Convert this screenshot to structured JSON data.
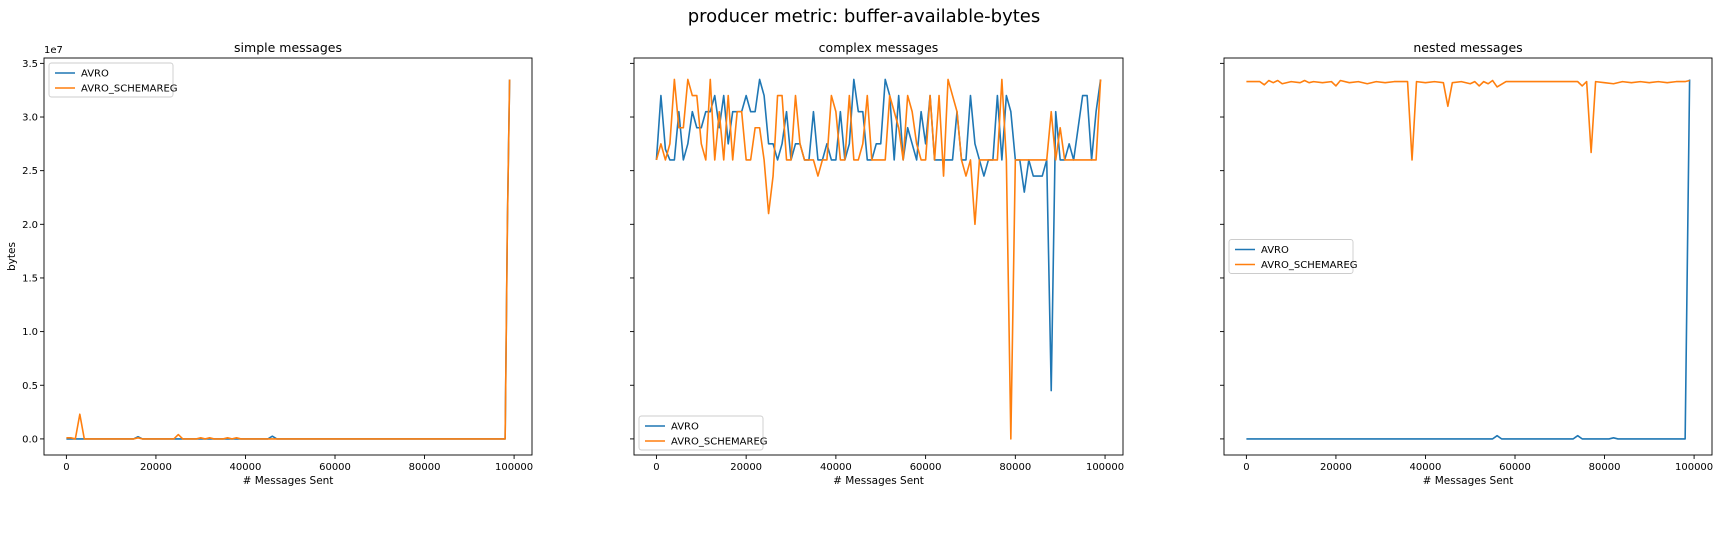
{
  "figure": {
    "suptitle": "producer metric: buffer-available-bytes"
  },
  "colors": {
    "AVRO": "#1f77b4",
    "AVRO_SCHEMAREG": "#ff7f0e"
  },
  "chart_data": [
    {
      "type": "line",
      "title": "simple messages",
      "xlabel": "# Messages Sent",
      "ylabel": "bytes",
      "y_offset_label": "1e7",
      "xlim": [
        -5000,
        104000
      ],
      "ylim": [
        -1500000,
        35500000
      ],
      "xticks": [
        0,
        20000,
        40000,
        60000,
        80000,
        100000
      ],
      "xtick_labels": [
        "0",
        "20000",
        "40000",
        "60000",
        "80000",
        "100000"
      ],
      "yticks": [
        0,
        5000000,
        10000000,
        15000000,
        20000000,
        25000000,
        30000000,
        35000000
      ],
      "ytick_labels": [
        "0.0",
        "0.5",
        "1.0",
        "1.5",
        "2.0",
        "2.5",
        "3.0",
        "3.5"
      ],
      "legend": {
        "placement": "upper-left"
      },
      "series": [
        {
          "name": "AVRO",
          "x": [
            0,
            1000,
            2000,
            3000,
            4000,
            15000,
            16000,
            17000,
            18000,
            45000,
            46000,
            47000,
            98000,
            98500,
            99000
          ],
          "y": [
            0,
            0,
            0,
            0,
            0,
            0,
            200000,
            0,
            0,
            0,
            250000,
            0,
            0,
            20000000,
            33500000
          ]
        },
        {
          "name": "AVRO_SCHEMAREG",
          "x": [
            0,
            1000,
            2000,
            3000,
            4000,
            15000,
            16000,
            17000,
            18000,
            24000,
            25000,
            26000,
            29000,
            30000,
            31000,
            32000,
            33000,
            35000,
            36000,
            37000,
            38000,
            39000,
            40000,
            98000,
            98500,
            99000
          ],
          "y": [
            100000,
            100000,
            0,
            2300000,
            0,
            0,
            100000,
            0,
            0,
            0,
            400000,
            0,
            0,
            100000,
            0,
            100000,
            0,
            0,
            100000,
            0,
            100000,
            0,
            0,
            0,
            20000000,
            33500000
          ]
        }
      ]
    },
    {
      "type": "line",
      "title": "complex messages",
      "xlabel": "# Messages Sent",
      "ylabel": "",
      "y_offset_label": "",
      "xlim": [
        -5000,
        104000
      ],
      "ylim": [
        -1500000,
        35500000
      ],
      "xticks": [
        0,
        20000,
        40000,
        60000,
        80000,
        100000
      ],
      "xtick_labels": [
        "0",
        "20000",
        "40000",
        "60000",
        "80000",
        "100000"
      ],
      "yticks": [
        0,
        5000000,
        10000000,
        15000000,
        20000000,
        25000000,
        30000000,
        35000000
      ],
      "ytick_labels": [
        "",
        "",
        "",
        "",
        "",
        "",
        "",
        ""
      ],
      "legend": {
        "placement": "lower-left"
      },
      "series": [
        {
          "name": "AVRO",
          "x": [
            0,
            1000,
            2000,
            3000,
            4000,
            5000,
            6000,
            7000,
            8000,
            9000,
            10000,
            11000,
            12000,
            13000,
            14000,
            15000,
            16000,
            17000,
            18000,
            19000,
            20000,
            21000,
            22000,
            23000,
            24000,
            25000,
            26000,
            27000,
            28000,
            29000,
            30000,
            31000,
            32000,
            33000,
            34000,
            35000,
            36000,
            37000,
            38000,
            39000,
            40000,
            41000,
            42000,
            43000,
            44000,
            45000,
            46000,
            47000,
            48000,
            49000,
            50000,
            51000,
            52000,
            53000,
            54000,
            55000,
            56000,
            57000,
            58000,
            59000,
            60000,
            61000,
            62000,
            63000,
            64000,
            65000,
            66000,
            67000,
            68000,
            69000,
            70000,
            71000,
            72000,
            73000,
            74000,
            75000,
            76000,
            77000,
            78000,
            79000,
            80000,
            81000,
            82000,
            83000,
            84000,
            85000,
            86000,
            87000,
            88000,
            89000,
            90000,
            91000,
            92000,
            93000,
            94000,
            95000,
            96000,
            97000,
            98000,
            99000
          ],
          "y": [
            26000000,
            32000000,
            27000000,
            26000000,
            26000000,
            30500000,
            26000000,
            27500000,
            30500000,
            29000000,
            29000000,
            30500000,
            30500000,
            32000000,
            29000000,
            32000000,
            27500000,
            30500000,
            30500000,
            30500000,
            32000000,
            30500000,
            30500000,
            33500000,
            32000000,
            27500000,
            27500000,
            26000000,
            27500000,
            30500000,
            26000000,
            27500000,
            27500000,
            26000000,
            26000000,
            30500000,
            26000000,
            26000000,
            27500000,
            26000000,
            26000000,
            30500000,
            26000000,
            27500000,
            33500000,
            30500000,
            30500000,
            26000000,
            26000000,
            27500000,
            27500000,
            33500000,
            32000000,
            26000000,
            32000000,
            26000000,
            29000000,
            27500000,
            26000000,
            30500000,
            27500000,
            32000000,
            26000000,
            26000000,
            26000000,
            26000000,
            26000000,
            30500000,
            26000000,
            26000000,
            32000000,
            27500000,
            26000000,
            24500000,
            26000000,
            26000000,
            32000000,
            26000000,
            32000000,
            30500000,
            26000000,
            26000000,
            23000000,
            26000000,
            24500000,
            24500000,
            24500000,
            26000000,
            4500000,
            30500000,
            26000000,
            26000000,
            27500000,
            26000000,
            29000000,
            32000000,
            32000000,
            26000000,
            30500000,
            33500000
          ]
        },
        {
          "name": "AVRO_SCHEMAREG",
          "x": [
            0,
            1000,
            2000,
            3000,
            4000,
            5000,
            6000,
            7000,
            8000,
            9000,
            10000,
            11000,
            12000,
            13000,
            14000,
            15000,
            16000,
            17000,
            18000,
            19000,
            20000,
            21000,
            22000,
            23000,
            24000,
            25000,
            26000,
            27000,
            28000,
            29000,
            30000,
            31000,
            32000,
            33000,
            34000,
            35000,
            36000,
            37000,
            38000,
            39000,
            40000,
            41000,
            42000,
            43000,
            44000,
            45000,
            46000,
            47000,
            48000,
            49000,
            50000,
            51000,
            52000,
            53000,
            54000,
            55000,
            56000,
            57000,
            58000,
            59000,
            60000,
            61000,
            62000,
            63000,
            64000,
            65000,
            66000,
            67000,
            68000,
            69000,
            70000,
            71000,
            72000,
            73000,
            74000,
            75000,
            76000,
            77000,
            78000,
            79000,
            80000,
            81000,
            82000,
            83000,
            84000,
            85000,
            86000,
            87000,
            88000,
            89000,
            90000,
            91000,
            92000,
            93000,
            94000,
            95000,
            96000,
            97000,
            98000,
            99000
          ],
          "y": [
            26000000,
            27500000,
            26000000,
            27500000,
            33500000,
            29000000,
            29000000,
            33500000,
            32000000,
            32000000,
            27500000,
            26000000,
            33500000,
            26000000,
            30500000,
            26000000,
            32000000,
            26000000,
            30500000,
            30500000,
            26000000,
            26000000,
            29000000,
            29000000,
            26000000,
            21000000,
            24500000,
            32000000,
            32000000,
            26000000,
            26000000,
            32000000,
            27500000,
            26000000,
            26000000,
            26000000,
            24500000,
            26000000,
            26000000,
            32000000,
            30500000,
            26000000,
            26000000,
            32000000,
            26000000,
            26000000,
            27500000,
            32000000,
            26000000,
            26000000,
            26000000,
            26000000,
            32000000,
            30500000,
            29000000,
            26000000,
            32000000,
            30500000,
            27500000,
            26000000,
            26000000,
            32000000,
            26000000,
            32000000,
            24500000,
            33500000,
            32000000,
            30500000,
            26000000,
            24500000,
            26000000,
            20000000,
            26000000,
            26000000,
            26000000,
            26000000,
            26000000,
            33500000,
            26000000,
            0,
            26000000,
            26000000,
            26000000,
            26000000,
            26000000,
            26000000,
            26000000,
            26000000,
            30500000,
            26000000,
            29000000,
            26000000,
            26000000,
            26000000,
            26000000,
            26000000,
            26000000,
            26000000,
            26000000,
            33500000
          ]
        }
      ]
    },
    {
      "type": "line",
      "title": "nested messages",
      "xlabel": "# Messages Sent",
      "ylabel": "",
      "y_offset_label": "",
      "xlim": [
        -5000,
        104000
      ],
      "ylim": [
        -1500000,
        35500000
      ],
      "xticks": [
        0,
        20000,
        40000,
        60000,
        80000,
        100000
      ],
      "xtick_labels": [
        "0",
        "20000",
        "40000",
        "60000",
        "80000",
        "100000"
      ],
      "yticks": [
        0,
        5000000,
        10000000,
        15000000,
        20000000,
        25000000,
        30000000,
        35000000
      ],
      "ytick_labels": [
        "",
        "",
        "",
        "",
        "",
        "",
        "",
        ""
      ],
      "legend": {
        "placement": "center-left"
      },
      "series": [
        {
          "name": "AVRO",
          "x": [
            0,
            55000,
            56000,
            57000,
            73000,
            74000,
            75000,
            81000,
            82000,
            83000,
            98000,
            99000
          ],
          "y": [
            0,
            0,
            300000,
            0,
            0,
            300000,
            0,
            0,
            100000,
            0,
            0,
            33500000
          ]
        },
        {
          "name": "AVRO_SCHEMAREG",
          "x": [
            0,
            2000,
            3000,
            4000,
            5000,
            6000,
            7000,
            8000,
            10000,
            12000,
            13000,
            14000,
            15000,
            17000,
            19000,
            20000,
            21000,
            23000,
            25000,
            27000,
            29000,
            31000,
            33000,
            35000,
            36000,
            37000,
            38000,
            40000,
            42000,
            44000,
            45000,
            46000,
            48000,
            50000,
            51000,
            52000,
            53000,
            54000,
            55000,
            56000,
            58000,
            60000,
            62000,
            64000,
            66000,
            68000,
            70000,
            72000,
            74000,
            75000,
            76000,
            77000,
            78000,
            80000,
            82000,
            84000,
            86000,
            88000,
            90000,
            92000,
            94000,
            96000,
            98000,
            99000
          ],
          "y": [
            33300000,
            33300000,
            33300000,
            33000000,
            33400000,
            33200000,
            33400000,
            33100000,
            33300000,
            33200000,
            33400000,
            33200000,
            33300000,
            33200000,
            33300000,
            32900000,
            33400000,
            33200000,
            33300000,
            33100000,
            33300000,
            33200000,
            33300000,
            33300000,
            33300000,
            26000000,
            33300000,
            33200000,
            33300000,
            33200000,
            31000000,
            33200000,
            33300000,
            33100000,
            33300000,
            32900000,
            33300000,
            33100000,
            33400000,
            32800000,
            33300000,
            33300000,
            33300000,
            33300000,
            33300000,
            33300000,
            33300000,
            33300000,
            33300000,
            32900000,
            33300000,
            26700000,
            33300000,
            33200000,
            33100000,
            33300000,
            33200000,
            33300000,
            33200000,
            33300000,
            33200000,
            33300000,
            33300000,
            33400000
          ]
        }
      ]
    }
  ]
}
